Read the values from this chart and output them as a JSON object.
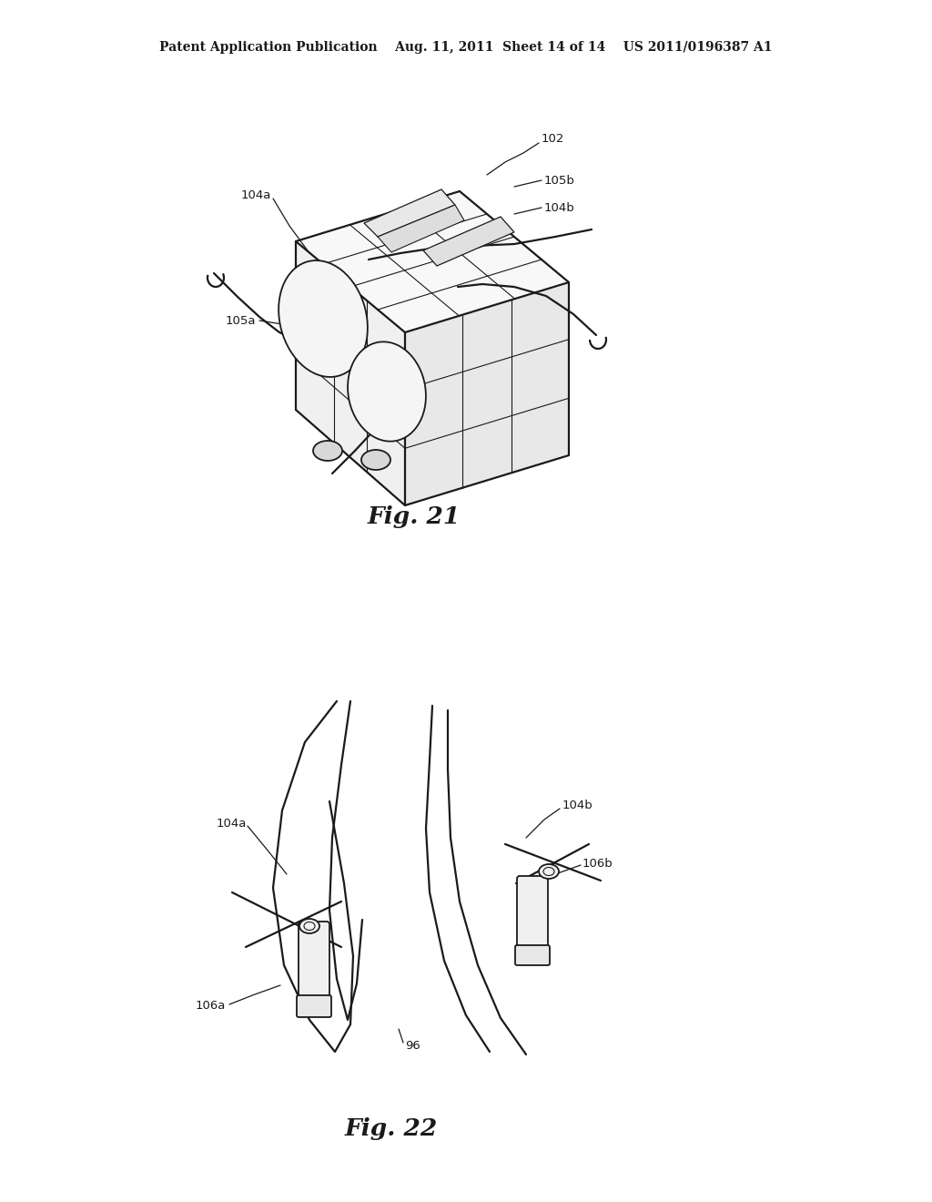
{
  "background_color": "#ffffff",
  "page_width": 10.24,
  "page_height": 13.2,
  "header_text": "Patent Application Publication    Aug. 11, 2011  Sheet 14 of 14    US 2011/0196387 A1",
  "header_fontsize": 10.0,
  "fig21_caption": "Fig. 21",
  "fig22_caption": "Fig. 22",
  "caption_fontsize": 19,
  "label_fontsize": 9.5,
  "line_color": "#1a1a1a"
}
